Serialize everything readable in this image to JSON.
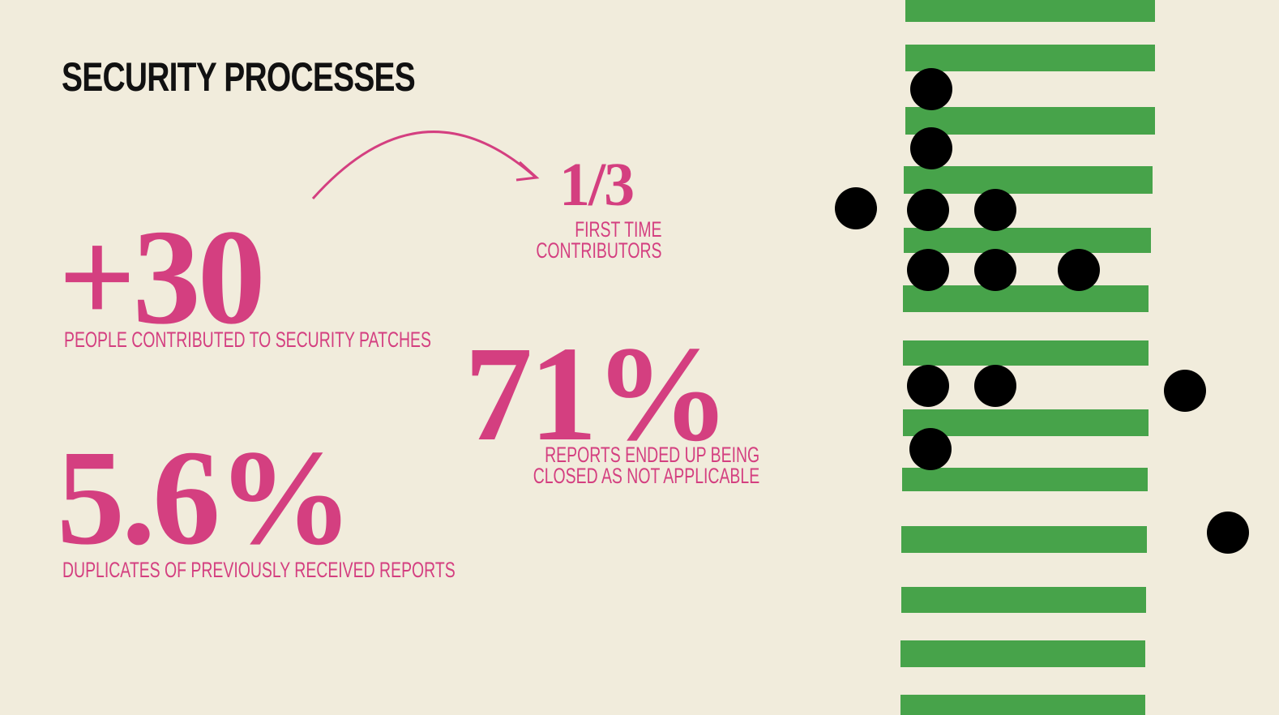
{
  "title": "SECURITY PROCESSES",
  "stats": [
    {
      "value": "+30",
      "label": [
        "PEOPLE CONTRIBUTED TO SECURITY PATCHES"
      ]
    },
    {
      "value": "1/3",
      "label": [
        "FIRST TIME",
        "CONTRIBUTORS"
      ]
    },
    {
      "value": "71%",
      "label": [
        "REPORTS ENDED UP BEING",
        "CLOSED AS NOT APPLICABLE"
      ]
    },
    {
      "value": "5.6%",
      "label": [
        "DUPLICATES OF PREVIOUSLY RECEIVED REPORTS"
      ]
    }
  ]
}
